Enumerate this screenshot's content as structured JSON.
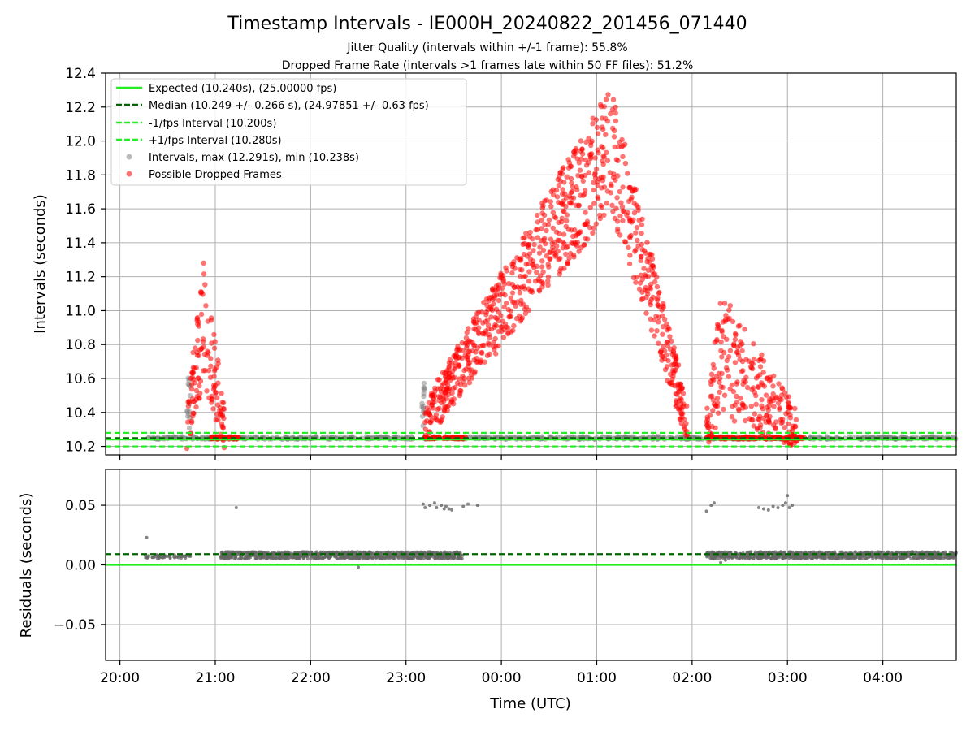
{
  "chart_data": [
    {
      "type": "scatter",
      "title": "Timestamp Intervals - IE000H_20240822_201456_071440",
      "subtitles": [
        "Jitter Quality (intervals within +/-1 frame): 55.8%",
        "Dropped Frame Rate (intervals >1 frames late within 50 FF files): 51.2%"
      ],
      "ylabel": "Intervals (seconds)",
      "ylim": [
        10.15,
        12.4
      ],
      "yticks": [
        "10.2",
        "10.4",
        "10.6",
        "10.8",
        "11.0",
        "11.2",
        "11.4",
        "11.6",
        "11.8",
        "12.0",
        "12.2",
        "12.4"
      ],
      "x_unit": "hours since 00:00 UTC (negative = previous day)",
      "xlim": [
        -4.15,
        4.77
      ],
      "grid": true,
      "legend_position": "top-left",
      "legend": [
        "Expected (10.240s), (25.00000 fps)",
        "Median (10.249 +/- 0.266 s), (24.97851 +/- 0.63 fps)",
        "-1/fps Interval (10.200s)",
        "+1/fps Interval (10.280s)",
        "Intervals, max (12.291s), min (10.238s)",
        "Possible Dropped Frames"
      ],
      "reference_lines": {
        "expected": 10.24,
        "median": 10.249,
        "minus_1fps": 10.2,
        "plus_1fps": 10.28
      },
      "colors": {
        "expected": "#22ee22",
        "median": "#006400",
        "intervals": "#7f7f7f",
        "dropped": "#ff0000"
      },
      "series": [
        {
          "name": "Intervals, max (12.291s), min (10.238s)",
          "style": "gray-points",
          "segments": [
            {
              "x0": -3.72,
              "x1": 4.77,
              "y": 10.25,
              "spread": 0.008,
              "n": 700
            }
          ]
        },
        {
          "name": "Possible Dropped Frames",
          "style": "red-points",
          "clusters": [
            {
              "x0": -3.3,
              "x1": -2.9,
              "peak_x": -3.12,
              "peak_y": 10.95,
              "base_y": 10.3,
              "n": 130
            },
            {
              "x0": -0.8,
              "x1": 1.95,
              "peak_x": 1.15,
              "peak_y": 11.95,
              "base_y": 10.35,
              "n": 900
            },
            {
              "x0": 2.15,
              "x1": 3.1,
              "peak_x": 2.3,
              "peak_y": 10.75,
              "base_y": 10.3,
              "n": 260
            }
          ],
          "low_bands": [
            {
              "x0": -3.05,
              "x1": -2.75,
              "y": 10.25,
              "n": 40
            },
            {
              "x0": -0.8,
              "x1": -0.38,
              "y": 10.25,
              "n": 50
            },
            {
              "x0": 2.15,
              "x1": 3.18,
              "y": 10.25,
              "n": 90
            }
          ]
        }
      ]
    },
    {
      "type": "scatter",
      "ylabel": "Residuals (seconds)",
      "xlabel": "Time (UTC)",
      "ylim": [
        -0.08,
        0.08
      ],
      "yticks": [
        "−0.05",
        "0.00",
        "0.05"
      ],
      "yticks_values": [
        -0.05,
        0.0,
        0.05
      ],
      "xticks": [
        "20:00",
        "21:00",
        "22:00",
        "23:00",
        "00:00",
        "01:00",
        "02:00",
        "03:00",
        "04:00"
      ],
      "xticks_values": [
        -4,
        -3,
        -2,
        -1,
        0,
        1,
        2,
        3,
        4
      ],
      "xlim": [
        -4.15,
        4.77
      ],
      "grid": true,
      "reference_lines": {
        "zero": 0.0,
        "median": 0.009
      },
      "series": [
        {
          "name": "Residuals",
          "style": "gray-points",
          "segments": [
            {
              "x0": -3.75,
              "x1": -3.25,
              "y": 0.007,
              "spread": 0.0015,
              "n": 60
            },
            {
              "x0": -2.95,
              "x1": -0.4,
              "y": 0.008,
              "spread": 0.003,
              "n": 900
            },
            {
              "x0": 2.15,
              "x1": 4.77,
              "y": 0.008,
              "spread": 0.003,
              "n": 900
            }
          ],
          "outliers": [
            [
              -3.72,
              0.023
            ],
            [
              -2.78,
              0.048
            ],
            [
              -0.82,
              0.051
            ],
            [
              -0.8,
              0.048
            ],
            [
              -0.75,
              0.05
            ],
            [
              -0.7,
              0.052
            ],
            [
              -0.68,
              0.048
            ],
            [
              -0.63,
              0.05
            ],
            [
              -0.6,
              0.047
            ],
            [
              -0.58,
              0.049
            ],
            [
              -0.55,
              0.047
            ],
            [
              -0.52,
              0.046
            ],
            [
              -0.4,
              0.049
            ],
            [
              -0.35,
              0.051
            ],
            [
              -0.25,
              0.05
            ],
            [
              2.15,
              0.045
            ],
            [
              2.2,
              0.05
            ],
            [
              2.23,
              0.052
            ],
            [
              2.7,
              0.048
            ],
            [
              2.75,
              0.047
            ],
            [
              2.8,
              0.046
            ],
            [
              2.85,
              0.049
            ],
            [
              2.9,
              0.048
            ],
            [
              2.95,
              0.05
            ],
            [
              2.98,
              0.052
            ],
            [
              3.02,
              0.048
            ],
            [
              3.05,
              0.05
            ],
            [
              3.0,
              0.058
            ],
            [
              -1.5,
              -0.002
            ],
            [
              2.3,
              0.002
            ],
            [
              2.35,
              0.004
            ]
          ]
        }
      ]
    }
  ]
}
